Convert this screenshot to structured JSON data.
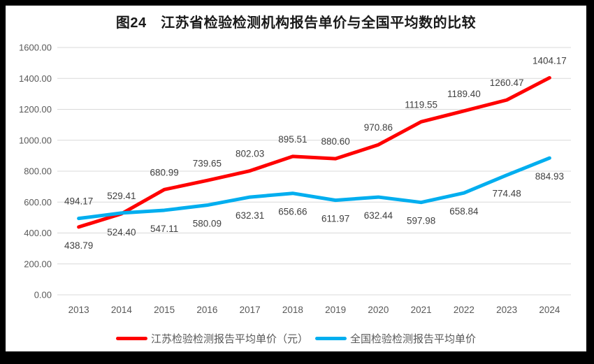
{
  "frame_color": "#000000",
  "chart_data": {
    "type": "line",
    "title": "图24　江苏省检验检测机构报告单价与全国平均数的比较",
    "categories": [
      "2013",
      "2014",
      "2015",
      "2016",
      "2017",
      "2018",
      "2019",
      "2020",
      "2021",
      "2022",
      "2023",
      "2024"
    ],
    "series": [
      {
        "name": "江苏检验检测报告平均单价（元）",
        "color": "#FF0000",
        "values": [
          438.79,
          524.4,
          680.99,
          739.65,
          802.03,
          895.51,
          880.6,
          970.86,
          1119.55,
          1189.4,
          1260.47,
          1404.17
        ]
      },
      {
        "name": "全国检验检测报告平均单价",
        "color": "#00AEEF",
        "values": [
          494.17,
          529.41,
          547.11,
          580.09,
          632.31,
          656.66,
          611.97,
          632.44,
          597.98,
          658.84,
          774.48,
          884.93
        ]
      }
    ],
    "ylim": [
      0,
      1600
    ],
    "ytick_step": 200,
    "ytick_labels": [
      "0.00",
      "200.00",
      "400.00",
      "600.00",
      "800.00",
      "1000.00",
      "1200.00",
      "1400.00",
      "1600.00"
    ],
    "grid": true,
    "gridline_color": "#D9D9D9",
    "axis_label_color": "#595959",
    "data_label_color": "#404040",
    "legend_position": "bottom",
    "data_label_decimals": 2
  }
}
